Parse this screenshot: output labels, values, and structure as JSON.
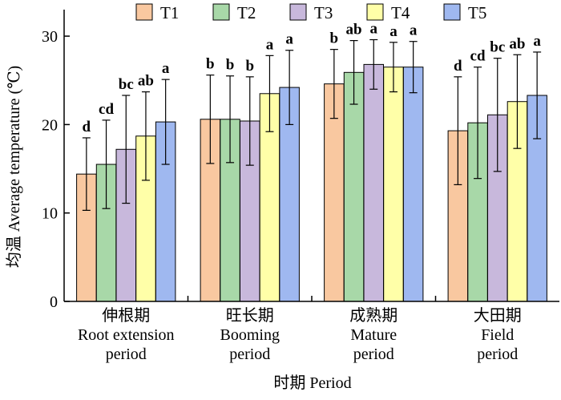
{
  "chart_data": {
    "type": "bar",
    "ylabel": "均温 Average temperature (℃)",
    "xlabel": "时期 Period",
    "ylim": [
      0,
      33
    ],
    "yticks": [
      0,
      10,
      20,
      30
    ],
    "grid": false,
    "legend_position": "top",
    "categories": [
      {
        "zh": "伸根期",
        "en1": "Root extension",
        "en2": "period"
      },
      {
        "zh": "旺长期",
        "en1": "Booming",
        "en2": "period"
      },
      {
        "zh": "成熟期",
        "en1": "Mature",
        "en2": "period"
      },
      {
        "zh": "大田期",
        "en1": "Field",
        "en2": "period"
      }
    ],
    "series": [
      {
        "name": "T1",
        "color": "#F9C8A0",
        "values": [
          14.4,
          20.6,
          24.6,
          19.3
        ],
        "errors": [
          4.1,
          5.0,
          3.9,
          6.1
        ],
        "letters": [
          "d",
          "b",
          "b",
          "d"
        ]
      },
      {
        "name": "T2",
        "color": "#A8D8A8",
        "values": [
          15.5,
          20.6,
          25.9,
          20.2
        ],
        "errors": [
          5.0,
          4.9,
          3.6,
          6.3
        ],
        "letters": [
          "cd",
          "b",
          "ab",
          "cd"
        ]
      },
      {
        "name": "T3",
        "color": "#C8B8DC",
        "values": [
          17.2,
          20.4,
          26.8,
          21.1
        ],
        "errors": [
          6.1,
          5.0,
          2.8,
          6.4
        ],
        "letters": [
          "bc",
          "b",
          "a",
          "bc"
        ]
      },
      {
        "name": "T4",
        "color": "#FFFFA8",
        "values": [
          18.7,
          23.5,
          26.5,
          22.6
        ],
        "errors": [
          5.0,
          4.3,
          2.8,
          5.3
        ],
        "letters": [
          "ab",
          "a",
          "a",
          "ab"
        ]
      },
      {
        "name": "T5",
        "color": "#9FB8F0",
        "values": [
          20.3,
          24.2,
          26.5,
          23.3
        ],
        "errors": [
          4.8,
          4.2,
          2.9,
          4.9
        ],
        "letters": [
          "a",
          "a",
          "a",
          "a"
        ]
      }
    ]
  }
}
